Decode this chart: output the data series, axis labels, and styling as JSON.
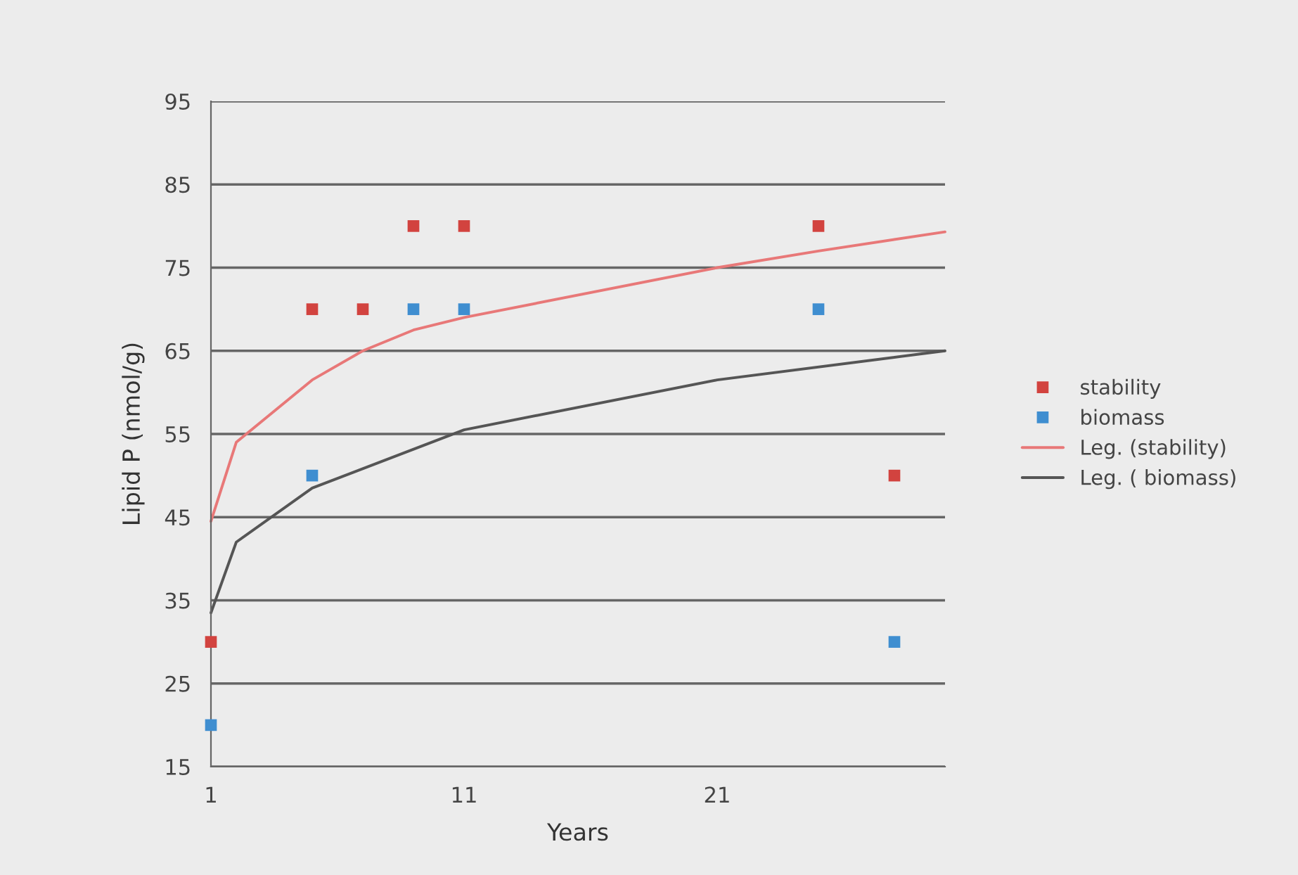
{
  "chart_data": {
    "type": "scatter",
    "xlabel": "Years",
    "ylabel": "Lipid P (nmol/g)",
    "xlim": [
      1,
      30
    ],
    "xticks": [
      1,
      11,
      21
    ],
    "ylim": [
      15,
      95
    ],
    "yticks": [
      15,
      25,
      35,
      45,
      55,
      65,
      75,
      85,
      95
    ],
    "grid": "y",
    "legend": "right",
    "marker": "square",
    "series": [
      {
        "name": "stability",
        "color": "#d2433f",
        "x": [
          1,
          5,
          7,
          9,
          11,
          25,
          28
        ],
        "values": [
          30,
          70,
          70,
          80,
          80,
          80,
          50
        ]
      },
      {
        "name": "biomass",
        "color": "#3f8ed0",
        "x": [
          1,
          5,
          9,
          11,
          25,
          28
        ],
        "values": [
          20,
          50,
          70,
          70,
          70,
          30
        ]
      },
      {
        "name": "Leg. (stability)",
        "type": "line",
        "color": "#e87878",
        "x": [
          1,
          2,
          5,
          7,
          9,
          11,
          21,
          25,
          30
        ],
        "values": [
          44.5,
          54,
          61.5,
          65,
          67.5,
          69,
          75,
          77,
          79.3
        ],
        "marker": "none"
      },
      {
        "name": "Leg. ( biomass)",
        "type": "line",
        "color": "#555555",
        "x": [
          1,
          2,
          5,
          11,
          21,
          30
        ],
        "values": [
          33.5,
          42,
          48.5,
          55.5,
          61.5,
          65
        ],
        "marker": "none"
      }
    ]
  }
}
